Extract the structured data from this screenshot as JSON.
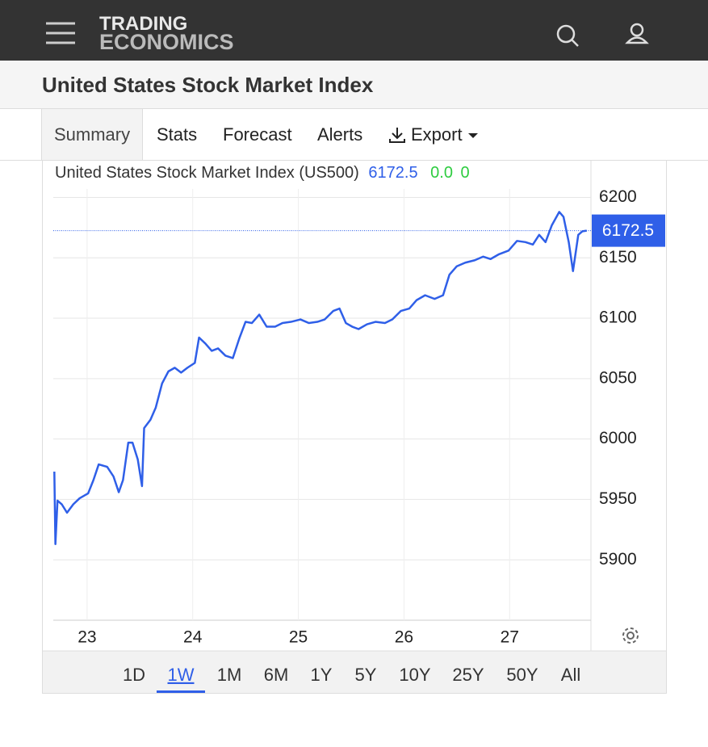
{
  "header": {
    "logo_top": "TRADING",
    "logo_bottom": "ECONOMICS"
  },
  "page_title": "United States Stock Market Index",
  "tabs": [
    "Summary",
    "Stats",
    "Forecast",
    "Alerts",
    "Export"
  ],
  "chart_data": {
    "type": "line",
    "title": "United States Stock Market Index (US500)",
    "last_value": 6172.5,
    "change": "0.0",
    "change_percent": "0",
    "color": "#2f5fe8",
    "grid": true,
    "xlim": [
      22.68,
      27.77
    ],
    "xticks": [
      23,
      24,
      25,
      26,
      27
    ],
    "ylim": [
      5850,
      6207
    ],
    "yticks": [
      5900,
      5950,
      6000,
      6050,
      6100,
      6150,
      6200
    ],
    "x": [
      22.69,
      22.7,
      22.72,
      22.76,
      22.81,
      22.87,
      22.93,
      23.01,
      23.06,
      23.11,
      23.19,
      23.25,
      23.3,
      23.34,
      23.39,
      23.43,
      23.48,
      23.52,
      23.54,
      23.6,
      23.65,
      23.71,
      23.77,
      23.83,
      23.89,
      23.95,
      24.02,
      24.06,
      24.12,
      24.18,
      24.24,
      24.31,
      24.38,
      24.44,
      24.5,
      24.56,
      24.63,
      24.7,
      24.78,
      24.85,
      24.93,
      25.02,
      25.1,
      25.18,
      25.25,
      25.33,
      25.39,
      25.45,
      25.51,
      25.57,
      25.65,
      25.73,
      25.82,
      25.89,
      25.97,
      26.05,
      26.12,
      26.2,
      26.29,
      26.37,
      26.43,
      26.5,
      26.58,
      26.67,
      26.75,
      26.82,
      26.9,
      26.99,
      27.07,
      27.15,
      27.22,
      27.28,
      27.34,
      27.4,
      27.47,
      27.51,
      27.56,
      27.6,
      27.65,
      27.69,
      27.73
    ],
    "values": [
      5973,
      5913,
      5949,
      5946,
      5939,
      5946,
      5951,
      5955,
      5966,
      5979,
      5977,
      5969,
      5956,
      5966,
      5997,
      5997,
      5983,
      5961,
      6009,
      6016,
      6026,
      6046,
      6056,
      6059,
      6055,
      6059,
      6063,
      6084,
      6079,
      6073,
      6075,
      6069,
      6067,
      6083,
      6097,
      6096,
      6103,
      6093,
      6093,
      6096,
      6097,
      6099,
      6096,
      6097,
      6099,
      6106,
      6108,
      6096,
      6093,
      6091,
      6095,
      6097,
      6096,
      6099,
      6106,
      6108,
      6115,
      6119,
      6116,
      6119,
      6136,
      6143,
      6146,
      6148,
      6151,
      6149,
      6153,
      6156,
      6164,
      6163,
      6161,
      6169,
      6163,
      6177,
      6188,
      6184,
      6163,
      6139,
      6169,
      6172,
      6172.5
    ],
    "ranges": [
      "1D",
      "1W",
      "1M",
      "6M",
      "1Y",
      "5Y",
      "10Y",
      "25Y",
      "50Y",
      "All"
    ],
    "active_range": "1W"
  }
}
